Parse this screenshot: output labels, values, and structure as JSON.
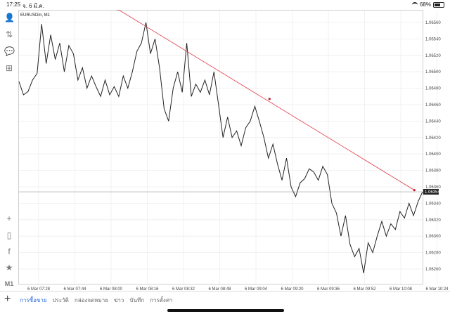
{
  "status": {
    "time": "17:25",
    "date": "จ. 6 มี.ค.",
    "battery": "68%"
  },
  "toolbar_icons": [
    "user-icon",
    "trade-icon",
    "chat-icon",
    "add-chart-icon",
    "crosshair-icon",
    "chart-type-icon",
    "indicator-icon",
    "objects-icon"
  ],
  "timeframe": "M1",
  "chart_data": {
    "type": "line",
    "title": "EURUSDm, M1",
    "xlabel": "",
    "ylabel": "",
    "ylim": [
      1.0625,
      1.0658
    ],
    "y_ticks": [
      "1.06560",
      "1.06540",
      "1.06520",
      "1.06500",
      "1.06480",
      "1.06460",
      "1.06440",
      "1.06420",
      "1.06400",
      "1.06380",
      "1.06360",
      "1.06340",
      "1.06320",
      "1.06300",
      "1.06280",
      "1.06260"
    ],
    "x_ticks": [
      "6 Mar 07:28",
      "6 Mar 07:44",
      "6 Mar 08:00",
      "6 Mar 08:16",
      "6 Mar 08:32",
      "6 Mar 08:48",
      "6 Mar 09:04",
      "6 Mar 09:20",
      "6 Mar 09:36",
      "6 Mar 09:52",
      "6 Mar 10:08",
      "6 Mar 10:24"
    ],
    "current_price": "1.06354",
    "values": [
      1.06488,
      1.06472,
      1.06476,
      1.0649,
      1.06498,
      1.06558,
      1.0651,
      1.06545,
      1.06515,
      1.06535,
      1.065,
      1.06532,
      1.06522,
      1.0649,
      1.06505,
      1.0648,
      1.06495,
      1.06482,
      1.0647,
      1.0649,
      1.06472,
      1.06482,
      1.0647,
      1.06495,
      1.0648,
      1.065,
      1.06525,
      1.06535,
      1.0656,
      1.06522,
      1.0654,
      1.06505,
      1.06455,
      1.0644,
      1.0648,
      1.065,
      1.06475,
      1.06535,
      1.0647,
      1.06485,
      1.06475,
      1.0649,
      1.06472,
      1.065,
      1.0646,
      1.0642,
      1.06445,
      1.0642,
      1.06428,
      1.0641,
      1.06432,
      1.0644,
      1.06458,
      1.0644,
      1.0642,
      1.06395,
      1.06412,
      1.06388,
      1.06368,
      1.06395,
      1.0636,
      1.06348,
      1.06365,
      1.0637,
      1.06382,
      1.06378,
      1.06368,
      1.06385,
      1.06375,
      1.0634,
      1.06328,
      1.063,
      1.06325,
      1.0629,
      1.06275,
      1.06285,
      1.06255,
      1.06292,
      1.0628,
      1.063,
      1.06318,
      1.063,
      1.06315,
      1.06308,
      1.0633,
      1.06322,
      1.0634,
      1.06325,
      1.06342,
      1.06354
    ],
    "trendline": {
      "from": [
        "6 Mar 08:03",
        1.06576
      ],
      "mid": [
        "6 Mar 09:10",
        1.06467
      ],
      "to": [
        "6 Mar 10:14",
        1.06356
      ]
    }
  },
  "tabs": [
    "การซื้อขาย",
    "ประวัติ",
    "กล่องจดหมาย",
    "ข่าว",
    "บันทึก",
    "การตั้งค่า"
  ],
  "active_tab": 0
}
